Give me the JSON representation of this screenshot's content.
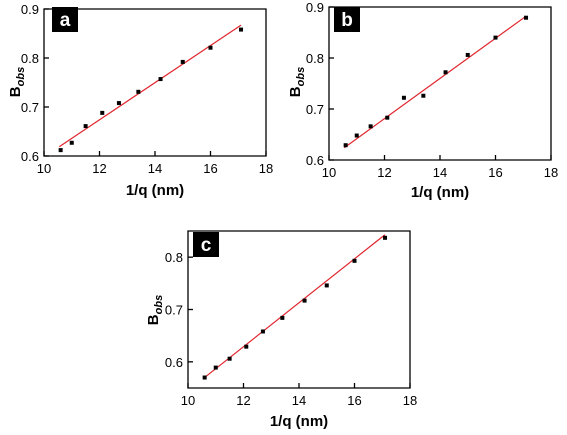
{
  "chart_data": [
    {
      "panel": "a",
      "type": "scatter",
      "xlabel": "1/q (nm)",
      "ylabel_main": "B",
      "ylabel_sub": "obs",
      "xlim": [
        10,
        18
      ],
      "ylim": [
        0.6,
        0.9
      ],
      "xticks": [
        "10",
        "12",
        "14",
        "16",
        "18"
      ],
      "yticks": [
        "0.6",
        "0.7",
        "0.8",
        "0.9"
      ],
      "series": [
        {
          "marker": "square",
          "x": [
            10.6,
            11.0,
            11.5,
            12.1,
            12.7,
            13.4,
            14.2,
            15.0,
            16.0,
            17.1
          ],
          "y": [
            0.612,
            0.627,
            0.661,
            0.688,
            0.708,
            0.731,
            0.757,
            0.792,
            0.821,
            0.858
          ]
        },
        {
          "type": "line",
          "x": [
            10.55,
            17.1
          ],
          "y": [
            0.619,
            0.867
          ]
        }
      ],
      "colors": {
        "fit": "#e0262e",
        "points": "#000000"
      }
    },
    {
      "panel": "b",
      "type": "scatter",
      "xlabel": "1/q (nm)",
      "ylabel_main": "B",
      "ylabel_sub": "obs",
      "xlim": [
        10,
        18
      ],
      "ylim": [
        0.6,
        0.9
      ],
      "xticks": [
        "10",
        "12",
        "14",
        "16",
        "18"
      ],
      "yticks": [
        "0.6",
        "0.7",
        "0.8",
        "0.9"
      ],
      "series": [
        {
          "marker": "square",
          "x": [
            10.6,
            11.0,
            11.5,
            12.1,
            12.7,
            13.4,
            14.2,
            15.0,
            16.0,
            17.1
          ],
          "y": [
            0.629,
            0.648,
            0.666,
            0.683,
            0.722,
            0.726,
            0.772,
            0.806,
            0.84,
            0.879
          ]
        },
        {
          "type": "line",
          "x": [
            10.55,
            17.1
          ],
          "y": [
            0.624,
            0.882
          ]
        }
      ],
      "colors": {
        "fit": "#e0262e",
        "points": "#000000"
      }
    },
    {
      "panel": "c",
      "type": "scatter",
      "xlabel": "1/q (nm)",
      "ylabel_main": "B",
      "ylabel_sub": "obs",
      "xlim": [
        10,
        18
      ],
      "ylim": [
        0.55,
        0.85
      ],
      "xticks": [
        "10",
        "12",
        "14",
        "16",
        "18"
      ],
      "yticks": [
        "0.6",
        "0.7",
        "0.8"
      ],
      "ytick_values": [
        0.6,
        0.7,
        0.8
      ],
      "series": [
        {
          "marker": "square",
          "x": [
            10.6,
            11.0,
            11.5,
            12.1,
            12.7,
            13.4,
            14.2,
            15.0,
            16.0,
            17.1
          ],
          "y": [
            0.57,
            0.589,
            0.606,
            0.629,
            0.658,
            0.684,
            0.717,
            0.746,
            0.793,
            0.837
          ]
        },
        {
          "type": "line",
          "x": [
            10.55,
            17.1
          ],
          "y": [
            0.568,
            0.843
          ]
        }
      ],
      "colors": {
        "fit": "#e0262e",
        "points": "#000000"
      }
    }
  ]
}
